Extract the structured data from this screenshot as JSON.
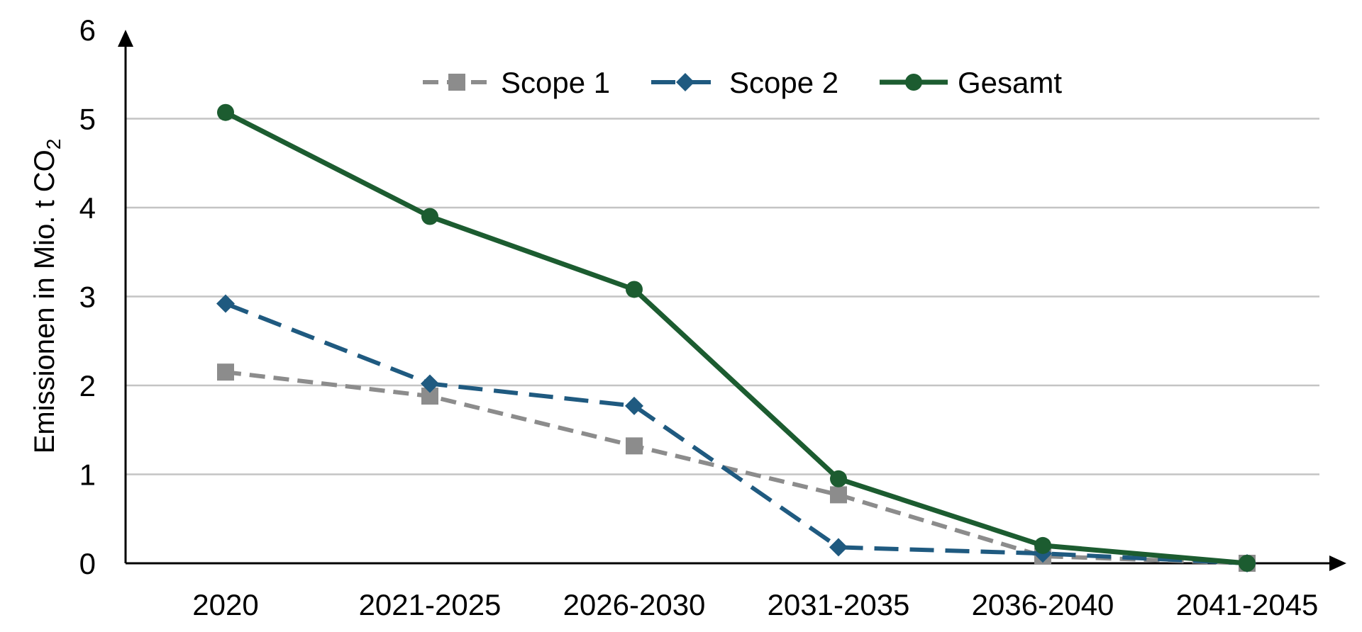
{
  "chart_data": {
    "type": "line",
    "categories": [
      "2020",
      "2021-2025",
      "2026-2030",
      "2031-2035",
      "2036-2040",
      "2041-2045"
    ],
    "series": [
      {
        "name": "Scope 1",
        "values": [
          2.15,
          1.88,
          1.32,
          0.77,
          0.08,
          0.0
        ],
        "color": "#8c8c8c",
        "dash": true,
        "marker": "square"
      },
      {
        "name": "Scope 2",
        "values": [
          2.92,
          2.02,
          1.77,
          0.18,
          0.11,
          0.0
        ],
        "color": "#1f5a80",
        "dash": true,
        "marker": "diamond"
      },
      {
        "name": "Gesamt",
        "values": [
          5.07,
          3.9,
          3.08,
          0.95,
          0.2,
          0.0
        ],
        "color": "#1c5c30",
        "dash": false,
        "marker": "circle"
      }
    ],
    "ylabel": "Emissionen in Mio. t CO",
    "ylabel_sub": "2",
    "ylim": [
      0,
      6
    ],
    "yticks": [
      "0",
      "1",
      "2",
      "3",
      "4",
      "5",
      "6"
    ],
    "grid": true,
    "legend_position": "top-center"
  }
}
